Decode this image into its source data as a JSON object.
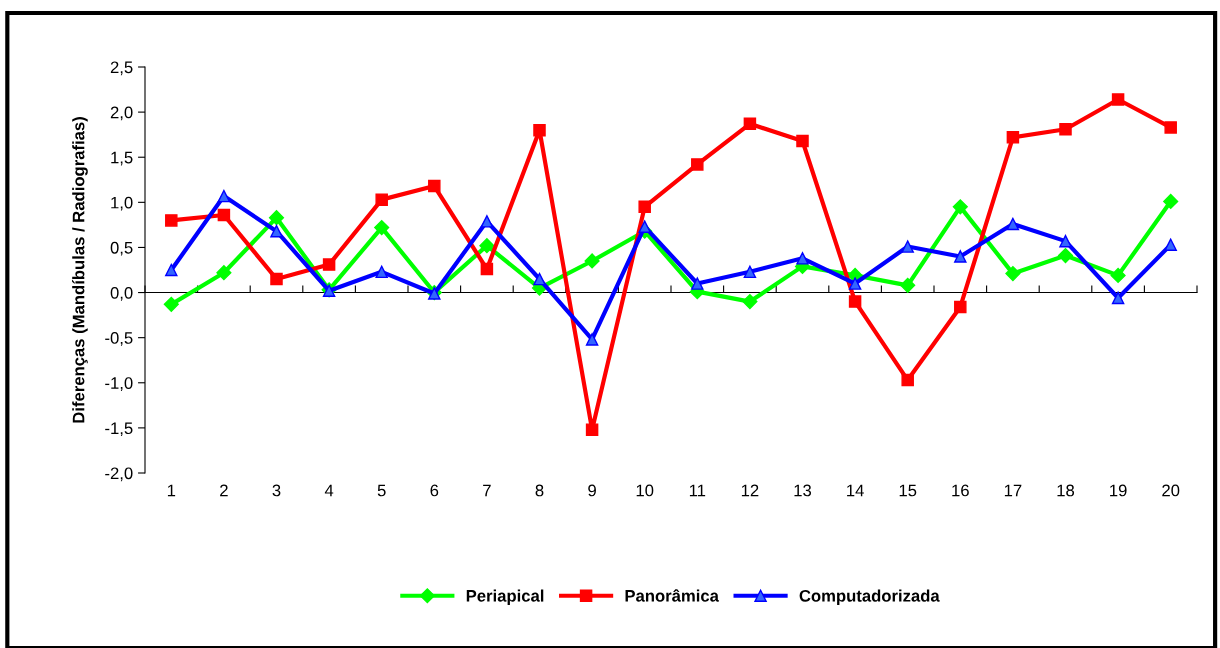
{
  "chart_data": {
    "type": "line",
    "ylabel": "Diferenças (Mandíbulas / Radiografias)",
    "categories": [
      "1",
      "2",
      "3",
      "4",
      "5",
      "6",
      "7",
      "8",
      "9",
      "10",
      "11",
      "12",
      "13",
      "14",
      "15",
      "16",
      "17",
      "18",
      "19",
      "20"
    ],
    "series": [
      {
        "name": "Periapical",
        "color": "#00ff00",
        "marker": "diamond",
        "values": [
          -0.13,
          0.22,
          0.83,
          0.03,
          0.72,
          0.0,
          0.52,
          0.05,
          0.35,
          0.68,
          0.01,
          -0.1,
          0.29,
          0.19,
          0.08,
          0.95,
          0.21,
          0.41,
          0.19,
          1.01
        ]
      },
      {
        "name": "Panorâmica",
        "color": "#ff0000",
        "marker": "square",
        "values": [
          0.8,
          0.86,
          0.15,
          0.31,
          1.03,
          1.18,
          0.26,
          1.8,
          -1.52,
          0.95,
          1.42,
          1.87,
          1.68,
          -0.1,
          -0.97,
          -0.16,
          1.72,
          1.81,
          2.14,
          1.83
        ]
      },
      {
        "name": "Computadorizada",
        "color": "#0000ff",
        "marker": "triangle",
        "values": [
          0.25,
          1.07,
          0.68,
          0.02,
          0.23,
          -0.01,
          0.79,
          0.15,
          -0.52,
          0.73,
          0.1,
          0.23,
          0.38,
          0.1,
          0.51,
          0.4,
          0.76,
          0.57,
          -0.06,
          0.53
        ]
      }
    ],
    "ylim": [
      -2.0,
      2.5
    ],
    "yticks": [
      {
        "value": -2.0,
        "label": "-2,0"
      },
      {
        "value": -1.5,
        "label": "-1,5"
      },
      {
        "value": -1.0,
        "label": "-1,0"
      },
      {
        "value": -0.5,
        "label": "-0,5"
      },
      {
        "value": 0.0,
        "label": "0,0"
      },
      {
        "value": 0.5,
        "label": "0,5"
      },
      {
        "value": 1.0,
        "label": "1,0"
      },
      {
        "value": 1.5,
        "label": "1,5"
      },
      {
        "value": 2.0,
        "label": "2,0"
      },
      {
        "value": 2.5,
        "label": "2,5"
      }
    ],
    "legend": "bottom",
    "line_style": "solid"
  }
}
